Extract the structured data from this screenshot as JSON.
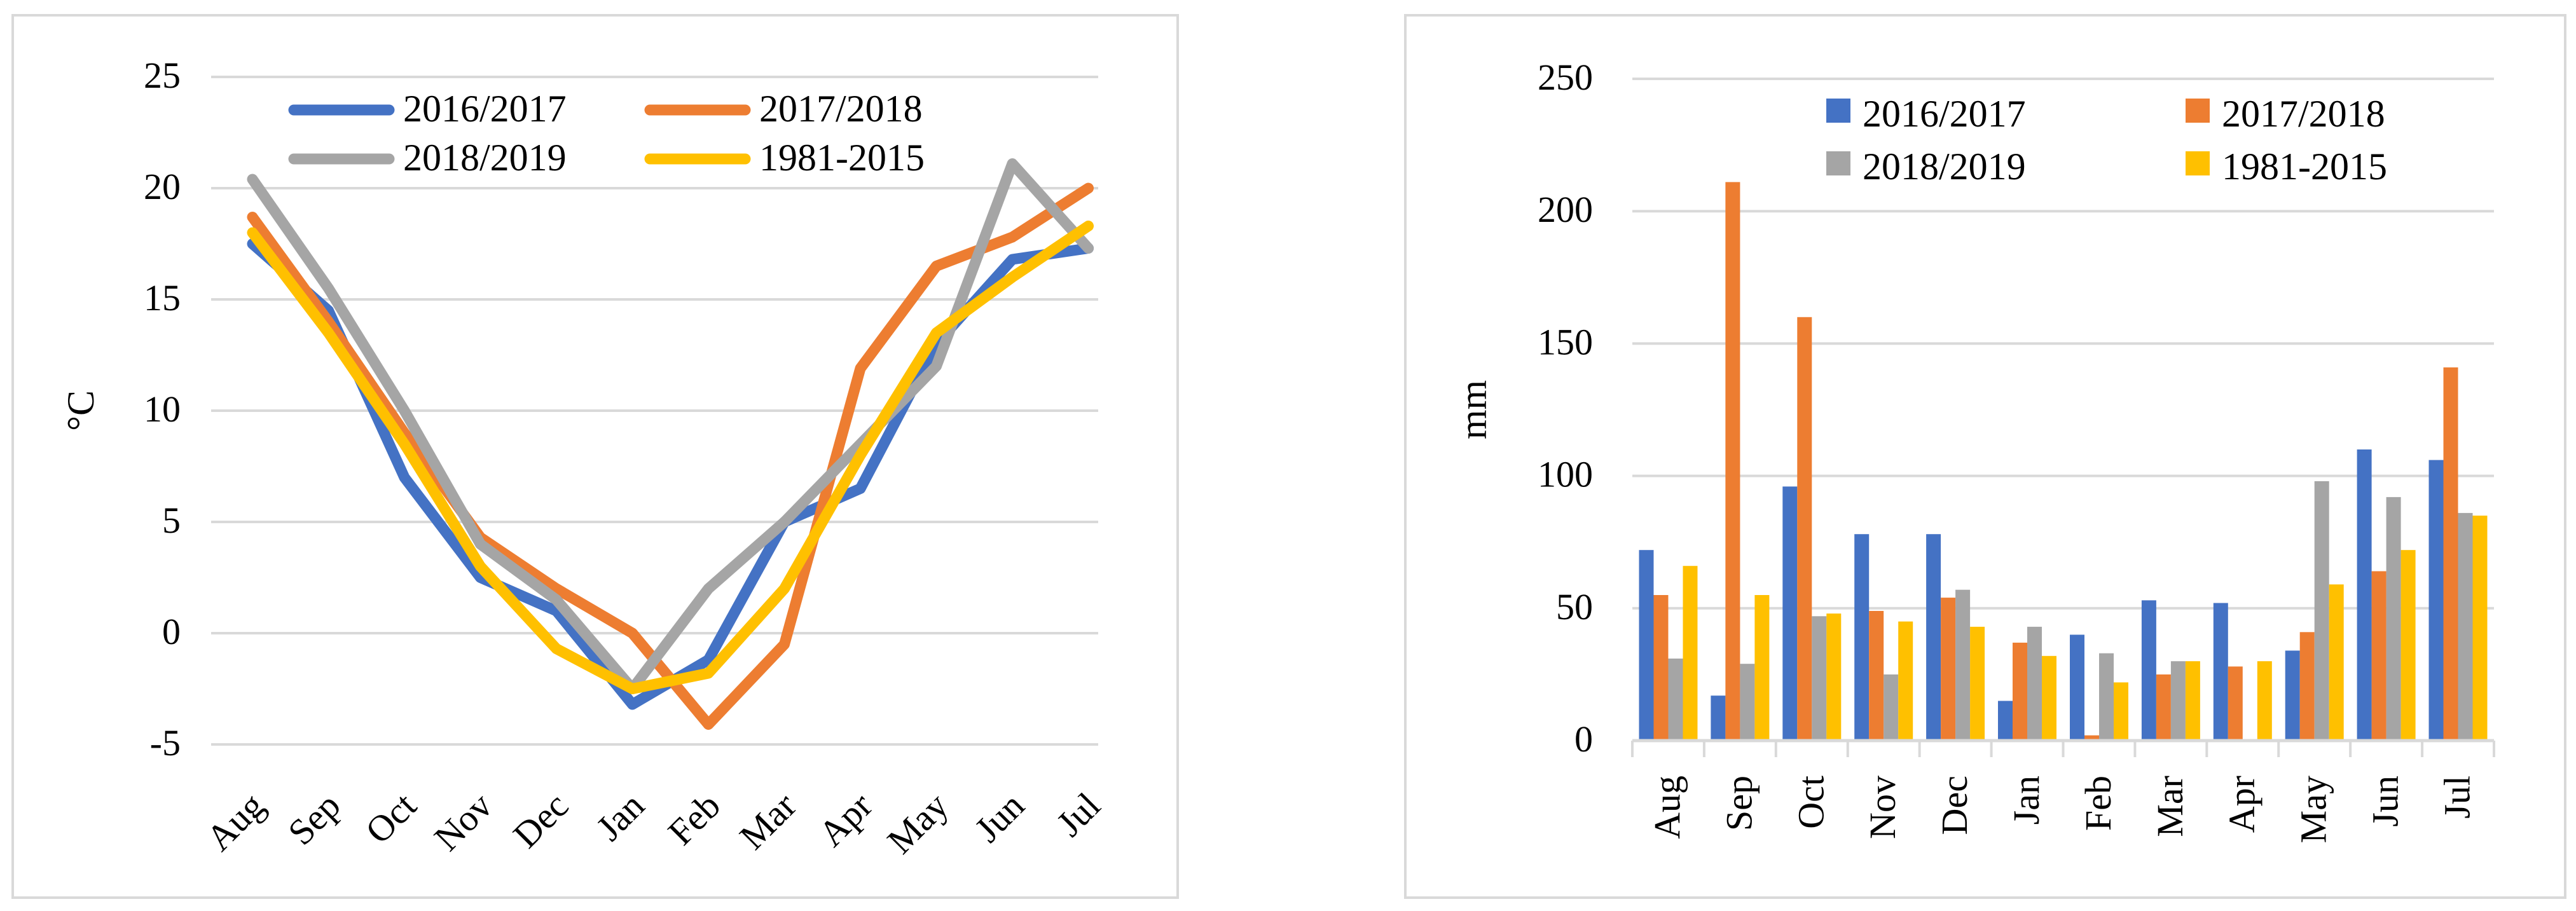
{
  "chart_data": [
    {
      "type": "line",
      "title": "",
      "xlabel": "",
      "ylabel": "°C",
      "ylim": [
        -5,
        25
      ],
      "yticks": [
        -5,
        0,
        5,
        10,
        15,
        20,
        25
      ],
      "ytick_labels": [
        "-5",
        "0",
        "5",
        "10",
        "15",
        "20",
        "25"
      ],
      "grid": true,
      "legend_position": "top",
      "categories": [
        "Aug",
        "Sep",
        "Oct",
        "Nov",
        "Dec",
        "Jan",
        "Feb",
        "Mar",
        "Apr",
        "May",
        "Jun",
        "Jul"
      ],
      "series": [
        {
          "name": "2016/2017",
          "color": "#4472c4",
          "values": [
            17.5,
            14.5,
            7.0,
            2.5,
            1.0,
            -3.2,
            -1.2,
            5.0,
            6.5,
            13.0,
            16.8,
            17.3
          ]
        },
        {
          "name": "2017/2018",
          "color": "#ed7d31",
          "values": [
            18.7,
            14.0,
            9.0,
            4.3,
            2.0,
            0.0,
            -4.1,
            -0.5,
            11.9,
            16.5,
            17.8,
            20.0
          ]
        },
        {
          "name": "2018/2019",
          "color": "#a5a5a5",
          "values": [
            20.4,
            15.5,
            10.0,
            4.0,
            1.5,
            -2.5,
            2.0,
            5.0,
            8.5,
            12.0,
            21.1,
            17.3
          ]
        },
        {
          "name": "1981-2015",
          "color": "#ffc000",
          "values": [
            18.0,
            13.5,
            8.5,
            3.0,
            -0.7,
            -2.5,
            -1.8,
            2.0,
            8.0,
            13.5,
            16.0,
            18.3
          ]
        }
      ]
    },
    {
      "type": "bar",
      "title": "",
      "xlabel": "",
      "ylabel": "mm",
      "ylim": [
        0,
        250
      ],
      "yticks": [
        0,
        50,
        100,
        150,
        200,
        250
      ],
      "ytick_labels": [
        "0",
        "50",
        "100",
        "150",
        "200",
        "250"
      ],
      "grid": true,
      "legend_position": "top",
      "categories": [
        "Aug",
        "Sep",
        "Oct",
        "Nov",
        "Dec",
        "Jan",
        "Feb",
        "Mar",
        "Apr",
        "May",
        "Jun",
        "Jul"
      ],
      "series": [
        {
          "name": "2016/2017",
          "color": "#4472c4",
          "values": [
            72,
            17,
            96,
            78,
            78,
            15,
            40,
            53,
            52,
            34,
            110,
            106
          ]
        },
        {
          "name": "2017/2018",
          "color": "#ed7d31",
          "values": [
            55,
            211,
            160,
            49,
            54,
            37,
            2,
            25,
            28,
            41,
            64,
            141
          ]
        },
        {
          "name": "2018/2019",
          "color": "#a5a5a5",
          "values": [
            31,
            29,
            47,
            25,
            57,
            43,
            33,
            30,
            0,
            98,
            92,
            86
          ]
        },
        {
          "name": "1981-2015",
          "color": "#ffc000",
          "values": [
            66,
            55,
            48,
            45,
            43,
            32,
            22,
            30,
            30,
            59,
            72,
            85
          ]
        }
      ]
    }
  ]
}
